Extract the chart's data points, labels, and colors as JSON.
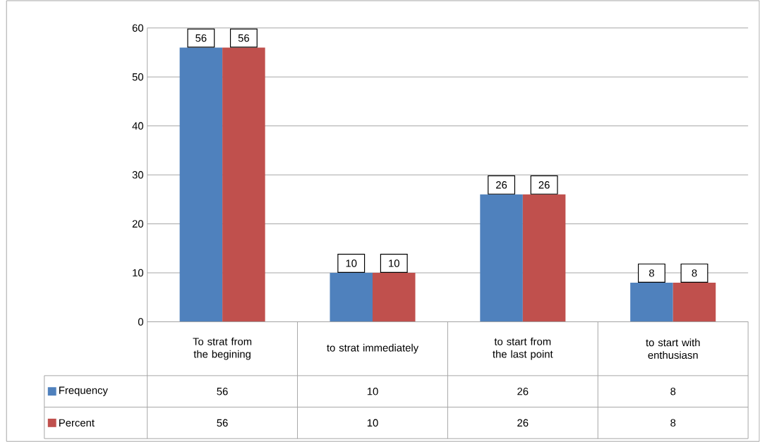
{
  "chart_data": {
    "type": "bar",
    "categories": [
      "To strat from the begining",
      "to strat immediately",
      "to start from the last point",
      "to start with enthusiasn"
    ],
    "series": [
      {
        "name": "Frequency",
        "color": "#4f81bd",
        "values": [
          56,
          10,
          26,
          8
        ]
      },
      {
        "name": "Percent",
        "color": "#c0504d",
        "values": [
          56,
          10,
          26,
          8
        ]
      }
    ],
    "annotations": [
      {
        "text": "56",
        "x": "To strat from the begining",
        "y": 56
      },
      {
        "text": "56",
        "x": "To strat from the begining",
        "y": 56
      },
      {
        "text": "10",
        "x": "to strat immediately",
        "y": 10
      },
      {
        "text": "10",
        "x": "to strat immediately",
        "y": 10
      },
      {
        "text": "26",
        "x": "to start from the last point",
        "y": 26
      },
      {
        "text": "26",
        "x": "to start from the last point",
        "y": 26
      },
      {
        "text": "8",
        "x": "to start with enthusiasn",
        "y": 8
      },
      {
        "text": "8",
        "x": "to start with enthusiasn",
        "y": 8
      }
    ],
    "ylim": [
      0,
      60
    ],
    "yticks": [
      0,
      10,
      20,
      30,
      40,
      50,
      60
    ],
    "grid": "y",
    "data_labels": true,
    "legend": "bottom"
  }
}
